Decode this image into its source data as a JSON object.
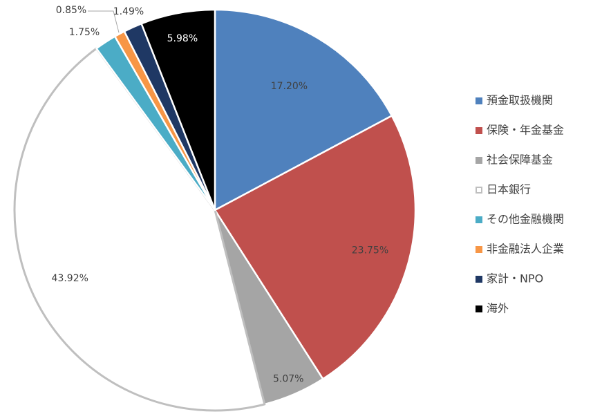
{
  "chart_data": {
    "type": "pie",
    "title": "",
    "legend_position": "right",
    "slices": [
      {
        "name": "預金取扱機関",
        "value": 17.2,
        "label": "17.20%",
        "color": "#4F81BD",
        "label_color": "#404040"
      },
      {
        "name": "保険・年金基金",
        "value": 23.75,
        "label": "23.75%",
        "color": "#C0504D",
        "label_color": "#404040"
      },
      {
        "name": "社会保障基金",
        "value": 5.07,
        "label": "5.07%",
        "color": "#A5A5A5",
        "label_color": "#404040"
      },
      {
        "name": "日本銀行",
        "value": 43.92,
        "label": "43.92%",
        "color": "#FFFFFF",
        "stroke": "#BFBFBF",
        "label_color": "#404040"
      },
      {
        "name": "その他金融機関",
        "value": 1.75,
        "label": "1.75%",
        "color": "#4BACC6",
        "label_color": "#404040"
      },
      {
        "name": "非金融法人企業",
        "value": 0.85,
        "label": "0.85%",
        "color": "#F79646",
        "label_color": "#404040"
      },
      {
        "name": "家計・NPO",
        "value": 1.49,
        "label": "1.49%",
        "color": "#1F3864",
        "label_color": "#404040"
      },
      {
        "name": "海外",
        "value": 5.98,
        "label": "5.98%",
        "color": "#000000",
        "label_color": "#FFFFFF"
      }
    ]
  }
}
